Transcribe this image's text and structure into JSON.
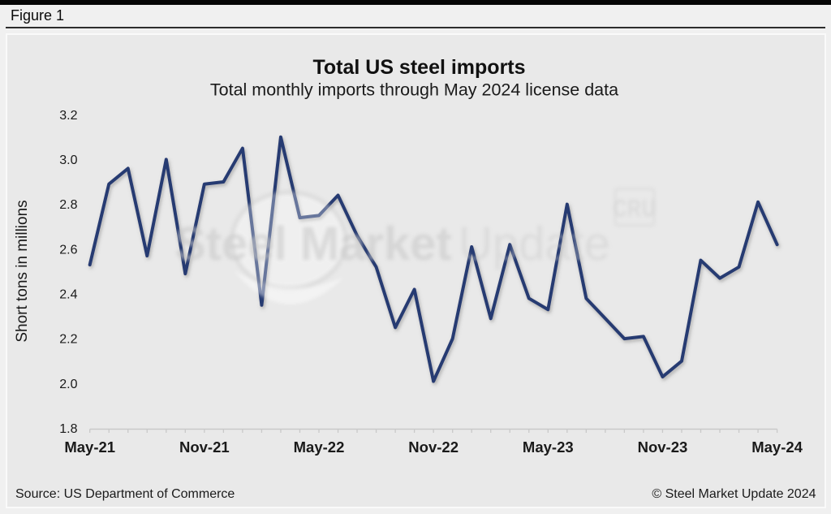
{
  "figure_label": "Figure 1",
  "footer": {
    "source": "Source: US Department of Commerce",
    "copyright": "© Steel Market Update 2024"
  },
  "watermark": {
    "brand_bold": "Steel Market",
    "brand_light": "Update",
    "cru_logo": "CRU"
  },
  "colors": {
    "line": "#283A72",
    "page_background": "#f0f0f0",
    "panel_background": "#e9e9e9",
    "axis": "#c9c9c9",
    "text": "#1a1a1a"
  },
  "chart_data": {
    "type": "line",
    "title": "Total US steel imports",
    "subtitle": "Total monthly imports through May 2024 license data",
    "ylabel": "Short tons in millions",
    "xlabel": "",
    "ylim": [
      1.8,
      3.2
    ],
    "y_tick_step": 0.2,
    "y_tick_labels": [
      "1.8",
      "2.0",
      "2.2",
      "2.4",
      "2.6",
      "2.8",
      "3.0",
      "3.2"
    ],
    "x_tick_labels": [
      "May-21",
      "Nov-21",
      "May-22",
      "Nov-22",
      "May-23",
      "Nov-23",
      "May-24"
    ],
    "x_tick_month_interval": 6,
    "grid": false,
    "legend": false,
    "categories": [
      "May-21",
      "Jun-21",
      "Jul-21",
      "Aug-21",
      "Sep-21",
      "Oct-21",
      "Nov-21",
      "Dec-21",
      "Jan-22",
      "Feb-22",
      "Mar-22",
      "Apr-22",
      "May-22",
      "Jun-22",
      "Jul-22",
      "Aug-22",
      "Sep-22",
      "Oct-22",
      "Nov-22",
      "Dec-22",
      "Jan-23",
      "Feb-23",
      "Mar-23",
      "Apr-23",
      "May-23",
      "Jun-23",
      "Jul-23",
      "Aug-23",
      "Sep-23",
      "Oct-23",
      "Nov-23",
      "Dec-23",
      "Jan-24",
      "Feb-24",
      "Mar-24",
      "Apr-24",
      "May-24"
    ],
    "values": [
      2.53,
      2.89,
      2.96,
      2.57,
      3.0,
      2.49,
      2.89,
      2.9,
      3.05,
      2.35,
      3.1,
      2.74,
      2.75,
      2.84,
      2.66,
      2.52,
      2.25,
      2.42,
      2.01,
      2.2,
      2.61,
      2.29,
      2.62,
      2.38,
      2.33,
      2.8,
      2.38,
      2.29,
      2.2,
      2.21,
      2.03,
      2.1,
      2.55,
      2.47,
      2.52,
      2.81,
      2.62
    ]
  }
}
